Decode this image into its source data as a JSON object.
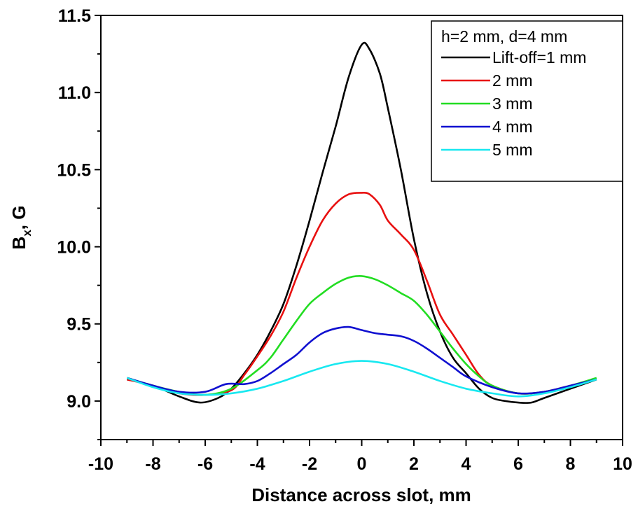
{
  "chart_data": {
    "type": "line",
    "xlabel": "Distance across slot, mm",
    "ylabel_main": "B",
    "ylabel_sub": "x",
    "ylabel_rest": ", G",
    "xlim": [
      -10,
      10
    ],
    "ylim": [
      8.75,
      11.5
    ],
    "x_ticks": [
      -10,
      -8,
      -6,
      -4,
      -2,
      0,
      2,
      4,
      6,
      8,
      10
    ],
    "x_tick_labels": [
      "-10",
      "-8",
      "-6",
      "-4",
      "-2",
      "0",
      "2",
      "4",
      "6",
      "8",
      "10"
    ],
    "y_ticks": [
      9.0,
      9.5,
      10.0,
      10.5,
      11.0,
      11.5
    ],
    "y_tick_labels": [
      "9.0",
      "9.5",
      "10.0",
      "10.5",
      "11.0",
      "11.5"
    ],
    "grid": false,
    "legend_title": "h=2 mm, d=4 mm",
    "legend_position": "top-right",
    "series": [
      {
        "name": "Lift-off=1 mm",
        "color": "#000000",
        "points": [
          [
            -9,
            9.14
          ],
          [
            -8,
            9.1
          ],
          [
            -7,
            9.03
          ],
          [
            -6.2,
            8.99
          ],
          [
            -5.5,
            9.02
          ],
          [
            -5,
            9.08
          ],
          [
            -4.5,
            9.18
          ],
          [
            -4,
            9.3
          ],
          [
            -3.5,
            9.45
          ],
          [
            -3,
            9.63
          ],
          [
            -2.5,
            9.88
          ],
          [
            -2,
            10.17
          ],
          [
            -1.5,
            10.48
          ],
          [
            -1,
            10.78
          ],
          [
            -0.5,
            11.1
          ],
          [
            0,
            11.31
          ],
          [
            0.3,
            11.28
          ],
          [
            0.7,
            11.12
          ],
          [
            1,
            10.9
          ],
          [
            1.5,
            10.5
          ],
          [
            2,
            10.05
          ],
          [
            2.5,
            9.7
          ],
          [
            3,
            9.45
          ],
          [
            3.5,
            9.28
          ],
          [
            4,
            9.18
          ],
          [
            4.5,
            9.08
          ],
          [
            5,
            9.02
          ],
          [
            5.5,
            9.0
          ],
          [
            6,
            8.99
          ],
          [
            6.5,
            8.99
          ],
          [
            7,
            9.02
          ],
          [
            8,
            9.08
          ],
          [
            9,
            9.14
          ]
        ]
      },
      {
        "name": "2 mm",
        "color": "#e81010",
        "points": [
          [
            -9,
            9.14
          ],
          [
            -8,
            9.1
          ],
          [
            -7,
            9.05
          ],
          [
            -6,
            9.04
          ],
          [
            -5,
            9.07
          ],
          [
            -4.5,
            9.17
          ],
          [
            -4,
            9.29
          ],
          [
            -3.5,
            9.42
          ],
          [
            -3,
            9.58
          ],
          [
            -2.5,
            9.8
          ],
          [
            -2,
            10.0
          ],
          [
            -1.5,
            10.17
          ],
          [
            -1,
            10.28
          ],
          [
            -0.5,
            10.34
          ],
          [
            0,
            10.35
          ],
          [
            0.3,
            10.34
          ],
          [
            0.7,
            10.27
          ],
          [
            1,
            10.17
          ],
          [
            1.5,
            10.08
          ],
          [
            2,
            9.98
          ],
          [
            2.5,
            9.78
          ],
          [
            3,
            9.56
          ],
          [
            3.5,
            9.43
          ],
          [
            4,
            9.3
          ],
          [
            4.5,
            9.17
          ],
          [
            5,
            9.1
          ],
          [
            6,
            9.05
          ],
          [
            7,
            9.06
          ],
          [
            8,
            9.1
          ],
          [
            9,
            9.14
          ]
        ]
      },
      {
        "name": "3 mm",
        "color": "#22dd22",
        "points": [
          [
            -9,
            9.15
          ],
          [
            -8,
            9.1
          ],
          [
            -7,
            9.06
          ],
          [
            -6,
            9.04
          ],
          [
            -5,
            9.08
          ],
          [
            -4,
            9.2
          ],
          [
            -3.5,
            9.28
          ],
          [
            -3,
            9.4
          ],
          [
            -2.5,
            9.52
          ],
          [
            -2,
            9.63
          ],
          [
            -1.5,
            9.7
          ],
          [
            -1,
            9.76
          ],
          [
            -0.5,
            9.8
          ],
          [
            0,
            9.81
          ],
          [
            0.5,
            9.79
          ],
          [
            1,
            9.75
          ],
          [
            1.5,
            9.7
          ],
          [
            2,
            9.65
          ],
          [
            2.5,
            9.56
          ],
          [
            3,
            9.45
          ],
          [
            3.5,
            9.34
          ],
          [
            4,
            9.24
          ],
          [
            4.5,
            9.16
          ],
          [
            5,
            9.1
          ],
          [
            6,
            9.05
          ],
          [
            7,
            9.06
          ],
          [
            8,
            9.1
          ],
          [
            9,
            9.15
          ]
        ]
      },
      {
        "name": "4 mm",
        "color": "#1010d0",
        "points": [
          [
            -9,
            9.15
          ],
          [
            -8,
            9.1
          ],
          [
            -7,
            9.06
          ],
          [
            -6,
            9.06
          ],
          [
            -5.2,
            9.11
          ],
          [
            -4.5,
            9.11
          ],
          [
            -4,
            9.13
          ],
          [
            -3.5,
            9.18
          ],
          [
            -3,
            9.24
          ],
          [
            -2.5,
            9.3
          ],
          [
            -2,
            9.38
          ],
          [
            -1.5,
            9.44
          ],
          [
            -1,
            9.47
          ],
          [
            -0.5,
            9.48
          ],
          [
            0,
            9.46
          ],
          [
            0.5,
            9.44
          ],
          [
            1,
            9.43
          ],
          [
            1.5,
            9.42
          ],
          [
            2,
            9.39
          ],
          [
            2.5,
            9.34
          ],
          [
            3,
            9.28
          ],
          [
            3.5,
            9.22
          ],
          [
            4,
            9.16
          ],
          [
            5,
            9.09
          ],
          [
            6,
            9.05
          ],
          [
            7,
            9.06
          ],
          [
            8,
            9.1
          ],
          [
            9,
            9.14
          ]
        ]
      },
      {
        "name": "5 mm",
        "color": "#18e8f0",
        "points": [
          [
            -9,
            9.15
          ],
          [
            -8,
            9.09
          ],
          [
            -7,
            9.05
          ],
          [
            -6,
            9.04
          ],
          [
            -5,
            9.05
          ],
          [
            -4,
            9.08
          ],
          [
            -3,
            9.13
          ],
          [
            -2,
            9.19
          ],
          [
            -1,
            9.24
          ],
          [
            0,
            9.26
          ],
          [
            1,
            9.24
          ],
          [
            2,
            9.19
          ],
          [
            3,
            9.13
          ],
          [
            4,
            9.08
          ],
          [
            5,
            9.05
          ],
          [
            6,
            9.03
          ],
          [
            7,
            9.05
          ],
          [
            8,
            9.09
          ],
          [
            9,
            9.14
          ]
        ]
      }
    ]
  }
}
